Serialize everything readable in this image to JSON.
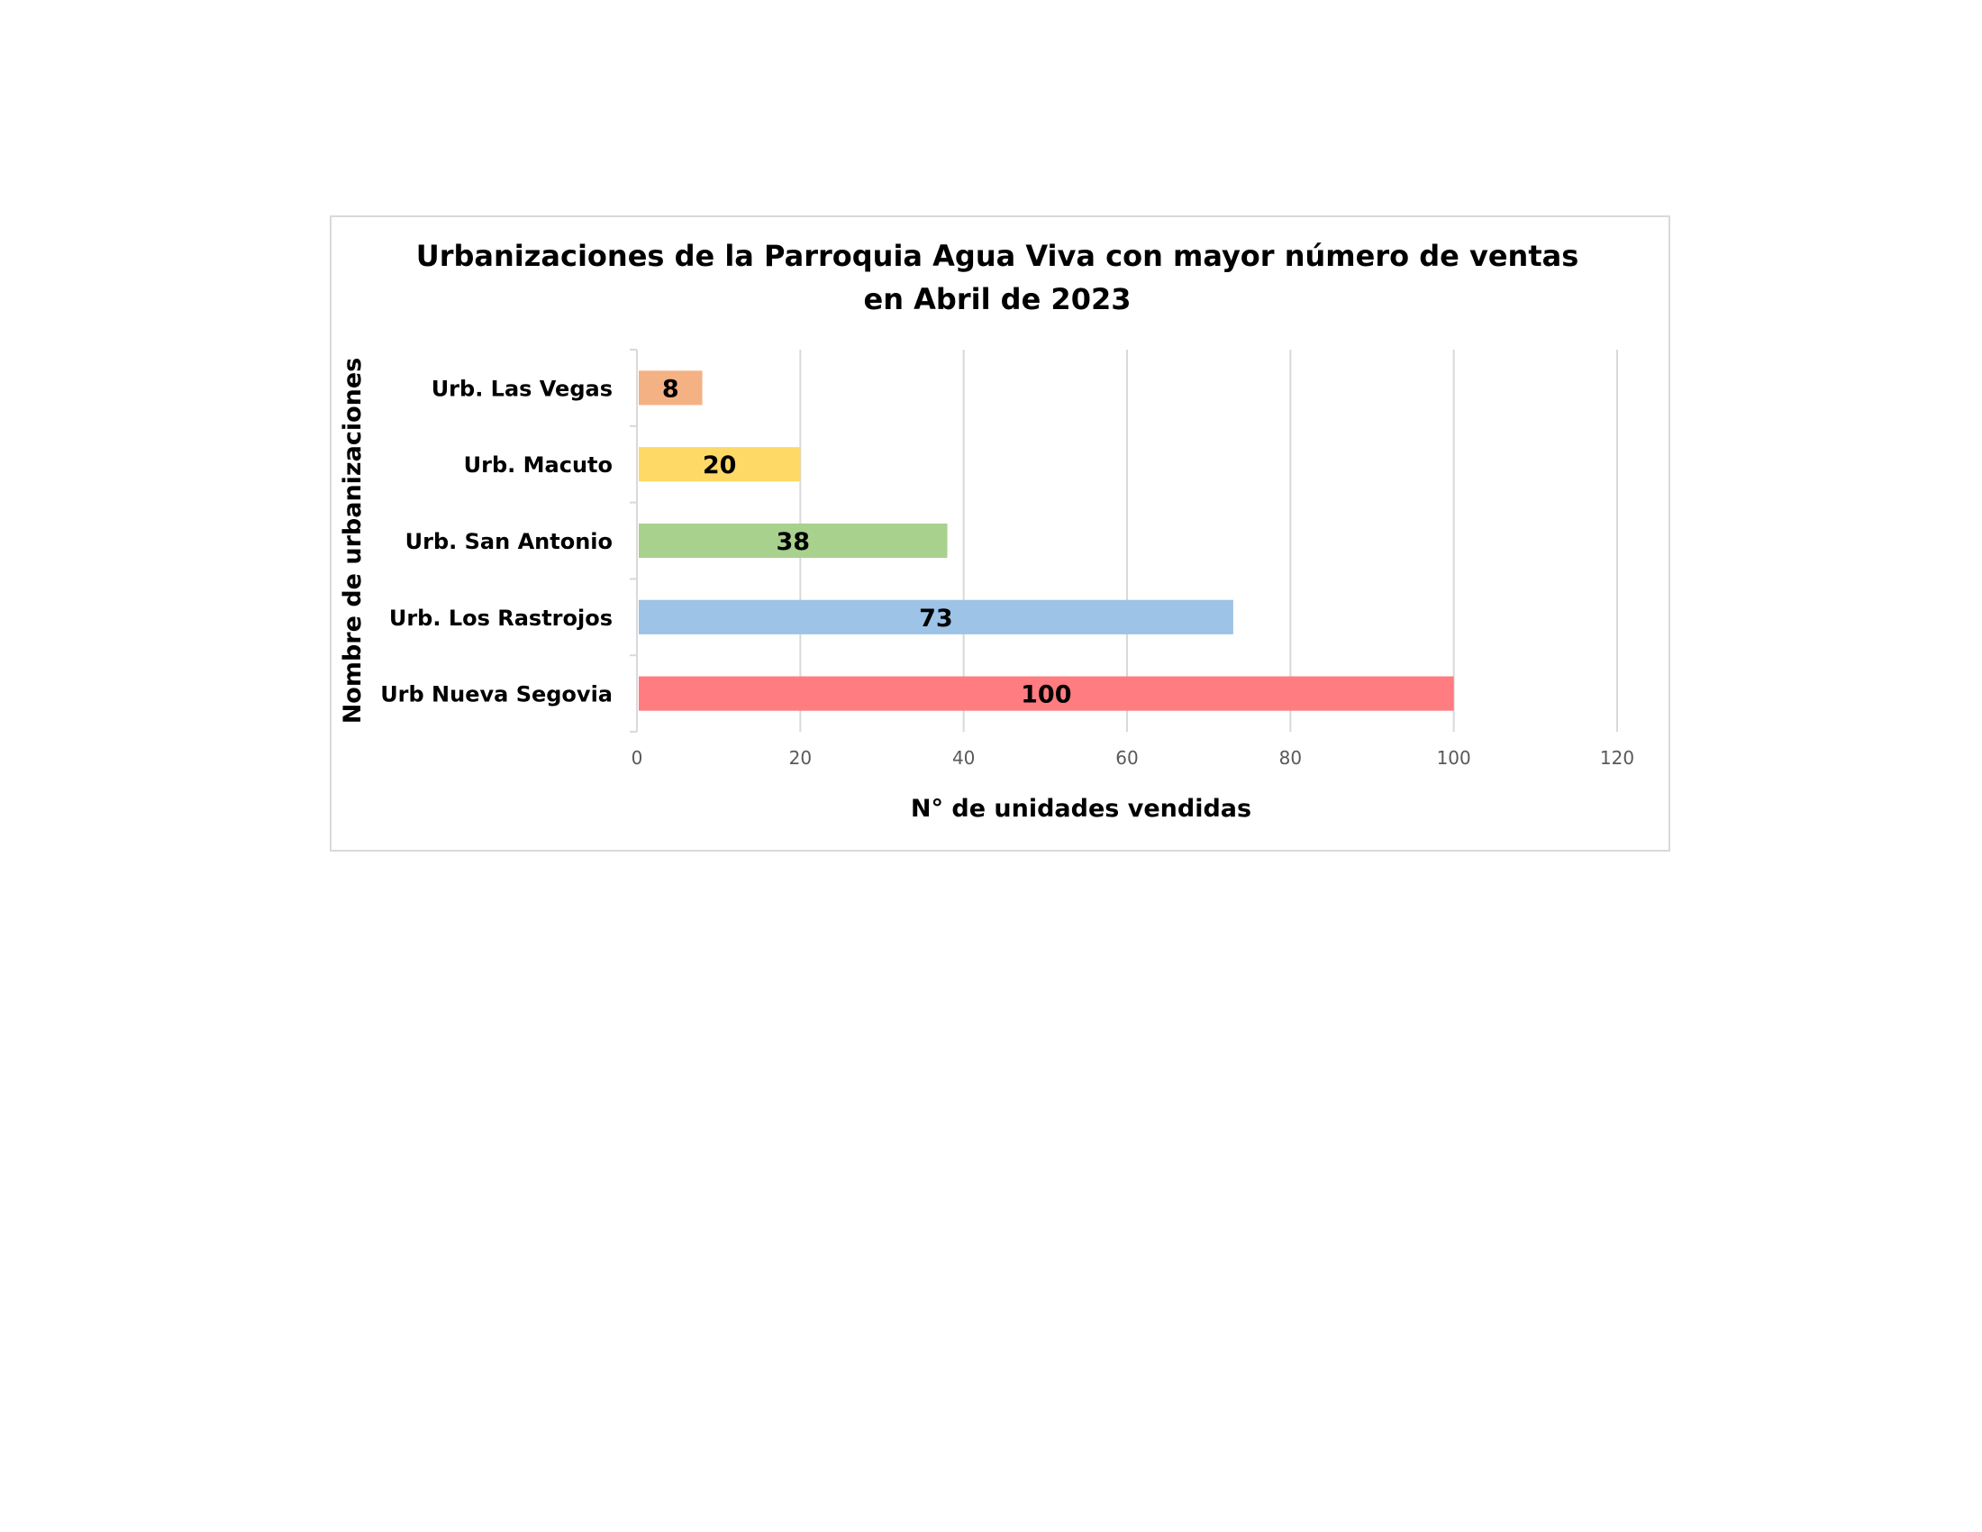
{
  "chart_data": {
    "type": "bar",
    "orientation": "horizontal",
    "title": "Urbanizaciones de la Parroquia Agua Viva con mayor número de ventas en Abril de 2023",
    "title_lines": [
      "Urbanizaciones de la Parroquia Agua Viva con mayor número de ventas",
      "en Abril de 2023"
    ],
    "xlabel": "N° de unidades vendidas",
    "ylabel": "Nombre de urbanizaciones",
    "xlim": [
      0,
      120
    ],
    "xticks": [
      0,
      20,
      40,
      60,
      80,
      100,
      120
    ],
    "grid": true,
    "legend": "none",
    "categories": [
      "Urb. Las Vegas",
      "Urb. Macuto",
      "Urb. San Antonio",
      "Urb. Los Rastrojos",
      "Urb Nueva Segovia"
    ],
    "values": [
      8,
      20,
      38,
      73,
      100
    ],
    "data_labels": [
      "8",
      "20",
      "38",
      "73",
      "100"
    ],
    "colors": [
      "#f4b183",
      "#ffd966",
      "#a9d18e",
      "#9dc3e6",
      "#ff7c80"
    ]
  }
}
